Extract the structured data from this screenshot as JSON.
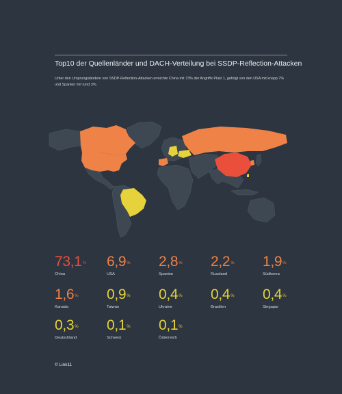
{
  "header": {
    "title": "Top10 der Quellenländer und DACH-Verteilung bei SSDP-Reflection-Attacken",
    "subtitle": "Unter den Ursprungsländern von SSDP-Reflection-Attacken erreichte China mit 73% der Angriffe Platz 1, gefolgt von den USA mit knapp 7% und Spanien mit rund 3%."
  },
  "colors": {
    "background": "#2c3540",
    "land": "#3e4853",
    "red": "#ea4f3c",
    "orange": "#ef8246",
    "yellow": "#e6d23a"
  },
  "stats": [
    {
      "value": "73,1",
      "unit": "%",
      "country": "China",
      "tier": "red"
    },
    {
      "value": "6,9",
      "unit": "%",
      "country": "USA",
      "tier": "orange"
    },
    {
      "value": "2,8",
      "unit": "%",
      "country": "Spanien",
      "tier": "orange"
    },
    {
      "value": "2,2",
      "unit": "%",
      "country": "Russland",
      "tier": "orange"
    },
    {
      "value": "1,9",
      "unit": "%",
      "country": "Südkorea",
      "tier": "orange"
    },
    {
      "value": "1,6",
      "unit": "%",
      "country": "Kanada",
      "tier": "orange"
    },
    {
      "value": "0,9",
      "unit": "%",
      "country": "Taiwan",
      "tier": "yellow"
    },
    {
      "value": "0,4",
      "unit": "%",
      "country": "Ukraine",
      "tier": "yellow"
    },
    {
      "value": "0,4",
      "unit": "%",
      "country": "Brasilien",
      "tier": "yellow"
    },
    {
      "value": "0,4",
      "unit": "%",
      "country": "Singapur",
      "tier": "yellow"
    },
    {
      "value": "0,3",
      "unit": "%",
      "country": "Deutschland",
      "tier": "yellow"
    },
    {
      "value": "0,1",
      "unit": "%",
      "country": "Schweiz",
      "tier": "yellow"
    },
    {
      "value": "0,1",
      "unit": "%",
      "country": "Österreich",
      "tier": "yellow"
    }
  ],
  "footer": {
    "copyright": "© Link11"
  }
}
